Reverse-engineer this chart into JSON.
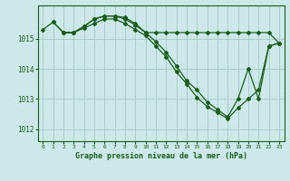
{
  "background_color": "#cce8e8",
  "grid_color": "#aacccc",
  "line_color": "#1a5c1a",
  "title": "Graphe pression niveau de la mer (hPa)",
  "ylabel_ticks": [
    1012,
    1013,
    1014,
    1015
  ],
  "xlim": [
    -0.5,
    23.5
  ],
  "ylim": [
    1011.6,
    1016.1
  ],
  "series": [
    {
      "x": [
        0,
        1,
        2,
        3,
        4,
        5,
        6,
        7,
        8,
        9,
        10,
        11,
        12,
        13,
        14,
        15,
        16,
        17,
        18,
        19,
        20,
        21,
        22,
        23
      ],
      "y": [
        1015.3,
        1015.55,
        1015.2,
        1015.2,
        1015.4,
        1015.65,
        1015.75,
        1015.75,
        1015.7,
        1015.5,
        1015.2,
        1015.2,
        1015.2,
        1015.2,
        1015.2,
        1015.2,
        1015.2,
        1015.2,
        1015.2,
        1015.2,
        1015.2,
        1015.2,
        1015.2,
        1014.85
      ]
    },
    {
      "x": [
        1,
        2,
        3,
        4,
        5,
        6,
        7,
        8,
        9,
        10,
        11,
        12,
        13,
        14,
        15,
        16,
        17,
        18,
        19,
        20,
        21,
        22,
        23
      ],
      "y": [
        1015.55,
        1015.2,
        1015.2,
        1015.4,
        1015.65,
        1015.75,
        1015.75,
        1015.65,
        1015.45,
        1015.2,
        1014.9,
        1014.55,
        1014.1,
        1013.6,
        1013.3,
        1012.9,
        1012.65,
        1012.4,
        1013.0,
        1014.0,
        1013.0,
        1014.75,
        1014.85
      ]
    },
    {
      "x": [
        2,
        3,
        4,
        5,
        6,
        7,
        8,
        9,
        10,
        11,
        12,
        13,
        14,
        15,
        16,
        17,
        18,
        19,
        20,
        21,
        22,
        23
      ],
      "y": [
        1015.2,
        1015.2,
        1015.35,
        1015.5,
        1015.65,
        1015.65,
        1015.5,
        1015.3,
        1015.1,
        1014.75,
        1014.4,
        1013.9,
        1013.5,
        1013.05,
        1012.75,
        1012.55,
        1012.35,
        1012.7,
        1013.0,
        1013.3,
        1014.75,
        1014.85
      ]
    }
  ]
}
